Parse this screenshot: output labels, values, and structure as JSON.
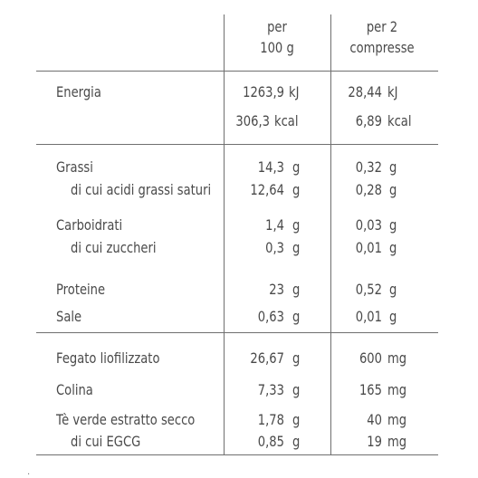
{
  "header": {
    "col1_line1": "per",
    "col1_line2": "100 g",
    "col2_line1": "per 2",
    "col2_line2": "compresse"
  },
  "rows": [
    {
      "label": "Energia",
      "v1": "1263,9",
      "u1": "kJ",
      "v2": "28,44",
      "u2": "kJ"
    },
    {
      "label": "",
      "v1": "306,3",
      "u1": "kcal",
      "v2": "6,89",
      "u2": "kcal"
    },
    {
      "label": "Grassi",
      "v1": "14,3",
      "u1": "g",
      "v2": "0,32",
      "u2": "g"
    },
    {
      "label": "di cui acidi grassi saturi",
      "v1": "12,64",
      "u1": "g",
      "v2": "0,28",
      "u2": "g"
    },
    {
      "label": "Carboidrati",
      "v1": "1,4",
      "u1": "g",
      "v2": "0,03",
      "u2": "g"
    },
    {
      "label": "di cui zuccheri",
      "v1": "0,3",
      "u1": "g",
      "v2": "0,01",
      "u2": "g"
    },
    {
      "label": "Proteine",
      "v1": "23",
      "u1": "g",
      "v2": "0,52",
      "u2": "g"
    },
    {
      "label": "Sale",
      "v1": "0,63",
      "u1": "g",
      "v2": "0,01",
      "u2": "g"
    },
    {
      "label": "Fegato liofilizzato",
      "v1": "26,67",
      "u1": "g",
      "v2": "600",
      "u2": "mg"
    },
    {
      "label": "Colina",
      "v1": "7,33",
      "u1": "g",
      "v2": "165",
      "u2": "mg"
    },
    {
      "label": "Tè verde estratto secco",
      "v1": "1,78",
      "u1": "g",
      "v2": "40",
      "u2": "mg"
    },
    {
      "label": "di cui EGCG",
      "v1": "0,85",
      "u1": "g",
      "v2": "19",
      "u2": "mg"
    }
  ],
  "footer_mark": "."
}
